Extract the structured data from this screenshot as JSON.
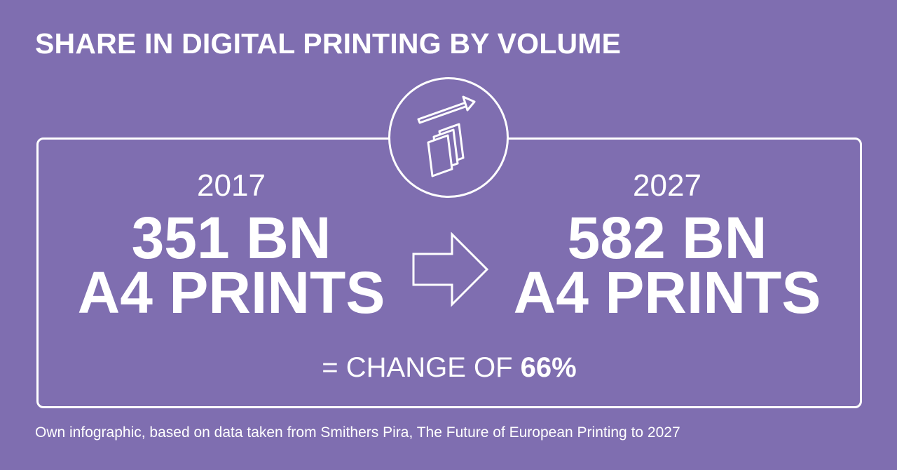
{
  "title": "SHARE IN DIGITAL PRINTING BY VOLUME",
  "icon": "documents-growth-icon",
  "left": {
    "year": "2017",
    "line1": "351 BN",
    "line2": "A4 PRINTS"
  },
  "right": {
    "year": "2027",
    "line1": "582 BN",
    "line2": "A4 PRINTS"
  },
  "change": {
    "prefix": "= CHANGE OF ",
    "value": "66%"
  },
  "footnote": "Own infographic, based on data taken from Smithers Pira, The Future of European Printing to 2027",
  "colors": {
    "background": "#7f6eb0",
    "foreground": "#ffffff"
  }
}
